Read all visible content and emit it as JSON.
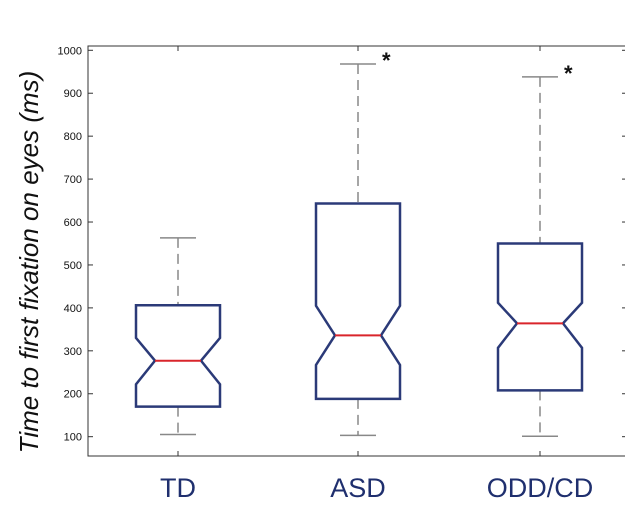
{
  "chart_data": {
    "type": "boxplot",
    "ylabel": "Time to first fixation on eyes (ms)",
    "ylim": [
      55,
      1010
    ],
    "yticks": [
      100,
      200,
      300,
      400,
      500,
      600,
      700,
      800,
      900,
      1000
    ],
    "categories": [
      "TD",
      "ASD",
      "ODD/CD"
    ],
    "boxes": [
      {
        "category": "TD",
        "whisker_low": 105,
        "q1": 170,
        "median": 277,
        "q3": 406,
        "whisker_high": 563,
        "notch_low": 222,
        "notch_high": 330,
        "annotation": ""
      },
      {
        "category": "ASD",
        "whisker_low": 103,
        "q1": 188,
        "median": 336,
        "q3": 643,
        "whisker_high": 968,
        "notch_low": 267,
        "notch_high": 405,
        "annotation": "*"
      },
      {
        "category": "ODD/CD",
        "whisker_low": 101,
        "q1": 208,
        "median": 364,
        "q3": 550,
        "whisker_high": 938,
        "notch_low": 307,
        "notch_high": 412,
        "annotation": "*"
      }
    ],
    "colors": {
      "box": "#2b3a78",
      "median": "#d9252b",
      "whisker": "#888888",
      "category_label": "#1f2f6e"
    },
    "grid": false
  }
}
